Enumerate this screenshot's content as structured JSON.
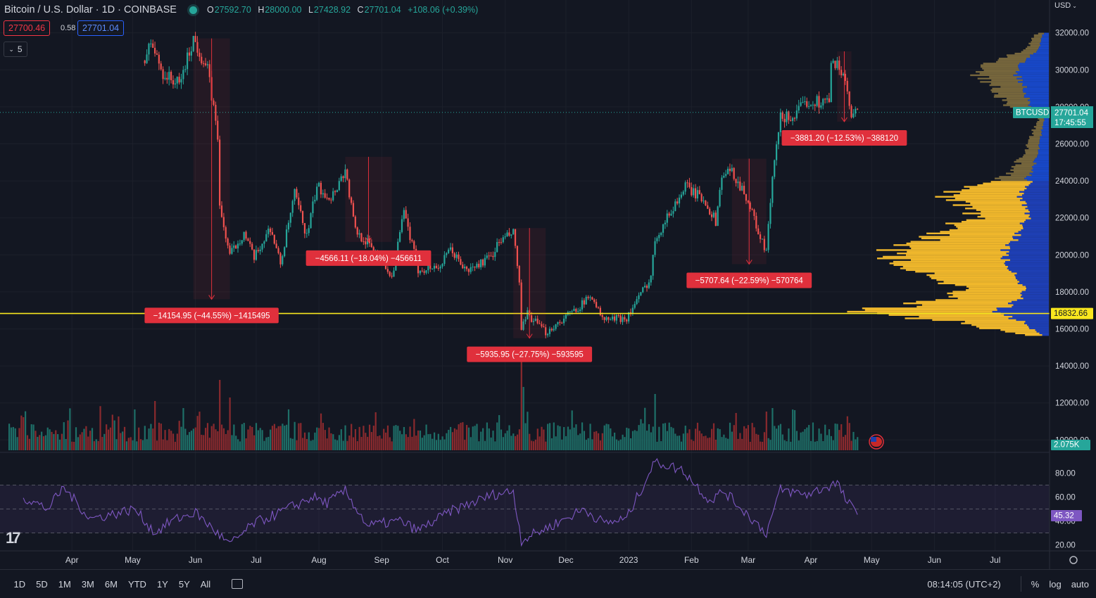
{
  "header": {
    "symbol_title": "Bitcoin / U.S. Dollar · 1D · COINBASE",
    "open_label": "O",
    "open": "27592.70",
    "high_label": "H",
    "high": "28000.00",
    "low_label": "L",
    "low": "27428.92",
    "close_label": "C",
    "close": "27701.04",
    "change": "+108.06 (+0.39%)",
    "bid": "27700.46",
    "spread": "0.58",
    "ask": "27701.04",
    "indicators_count": "5",
    "currency_button": "USD"
  },
  "colors": {
    "up": "#26a69a",
    "down": "#ef5350",
    "background": "#131722",
    "level": "#f9e71e",
    "rsi": "#7e57c2",
    "profile_upper": "#1848c8",
    "profile_lower": "#1e3fb4",
    "profile_value": "#fbc02d",
    "label_red": "#e0303c"
  },
  "price_axis": {
    "labels": [
      "32000.00",
      "30000.00",
      "28000.00",
      "26000.00",
      "24000.00",
      "22000.00",
      "20000.00",
      "18000.00",
      "16000.00",
      "14000.00",
      "12000.00",
      "10000.00"
    ]
  },
  "rsi_axis": {
    "labels": [
      "80.00",
      "60.00",
      "40.00",
      "20.00"
    ],
    "current": "45.32"
  },
  "time_axis": {
    "labels": [
      "Apr",
      "May",
      "Jun",
      "Jul",
      "Aug",
      "Sep",
      "Oct",
      "Nov",
      "Dec",
      "2023",
      "Feb",
      "Mar",
      "Apr",
      "May",
      "Jun",
      "Jul"
    ]
  },
  "markers": {
    "symbol_tag": "BTCUSD",
    "last_price": "27701.04",
    "countdown": "17:45:55",
    "level_price": "16832.66",
    "volume_value": "2.075K"
  },
  "measurements": [
    {
      "text": "−14154.95 (−44.55%) −1415495"
    },
    {
      "text": "−4566.11 (−18.04%) −456611"
    },
    {
      "text": "−5935.95 (−27.75%) −593595"
    },
    {
      "text": "−5707.64 (−22.59%) −570764"
    },
    {
      "text": "−3881.20 (−12.53%) −388120"
    }
  ],
  "bottom_bar": {
    "timeframes": [
      "1D",
      "5D",
      "1M",
      "3M",
      "6M",
      "YTD",
      "1Y",
      "5Y",
      "All"
    ],
    "clock": "08:14:05 (UTC+2)",
    "percent": "%",
    "log": "log",
    "auto": "auto"
  },
  "chart_data": {
    "type": "candlestick",
    "xlabel": "",
    "ylabel": "",
    "ylim": [
      9600,
      33000
    ],
    "horizontal_level": 16832.66,
    "price_path": [
      {
        "x": "2022-05-07",
        "y": 30500
      },
      {
        "x": "2022-05-10",
        "y": 31500
      },
      {
        "x": "2022-05-16",
        "y": 29800
      },
      {
        "x": "2022-05-24",
        "y": 29200
      },
      {
        "x": "2022-05-31",
        "y": 31700
      },
      {
        "x": "2022-06-07",
        "y": 30000
      },
      {
        "x": "2022-06-12",
        "y": 26500
      },
      {
        "x": "2022-06-13",
        "y": 22500
      },
      {
        "x": "2022-06-18",
        "y": 20000
      },
      {
        "x": "2022-06-25",
        "y": 21200
      },
      {
        "x": "2022-06-30",
        "y": 19800
      },
      {
        "x": "2022-07-08",
        "y": 21500
      },
      {
        "x": "2022-07-13",
        "y": 19500
      },
      {
        "x": "2022-07-20",
        "y": 23300
      },
      {
        "x": "2022-07-26",
        "y": 21000
      },
      {
        "x": "2022-07-31",
        "y": 23700
      },
      {
        "x": "2022-08-07",
        "y": 23100
      },
      {
        "x": "2022-08-14",
        "y": 24600
      },
      {
        "x": "2022-08-19",
        "y": 21300
      },
      {
        "x": "2022-08-31",
        "y": 20000
      },
      {
        "x": "2022-09-06",
        "y": 18800
      },
      {
        "x": "2022-09-12",
        "y": 22300
      },
      {
        "x": "2022-09-19",
        "y": 19200
      },
      {
        "x": "2022-09-30",
        "y": 19400
      },
      {
        "x": "2022-10-05",
        "y": 20300
      },
      {
        "x": "2022-10-13",
        "y": 19100
      },
      {
        "x": "2022-10-25",
        "y": 19900
      },
      {
        "x": "2022-10-29",
        "y": 20700
      },
      {
        "x": "2022-11-05",
        "y": 21200
      },
      {
        "x": "2022-11-08",
        "y": 18500
      },
      {
        "x": "2022-11-09",
        "y": 15900
      },
      {
        "x": "2022-11-12",
        "y": 16800
      },
      {
        "x": "2022-11-21",
        "y": 15800
      },
      {
        "x": "2022-12-05",
        "y": 17000
      },
      {
        "x": "2022-12-14",
        "y": 17800
      },
      {
        "x": "2022-12-19",
        "y": 16500
      },
      {
        "x": "2022-12-31",
        "y": 16600
      },
      {
        "x": "2023-01-12",
        "y": 18800
      },
      {
        "x": "2023-01-14",
        "y": 20900
      },
      {
        "x": "2023-01-29",
        "y": 23700
      },
      {
        "x": "2023-02-08",
        "y": 22900
      },
      {
        "x": "2023-02-13",
        "y": 21800
      },
      {
        "x": "2023-02-16",
        "y": 24300
      },
      {
        "x": "2023-02-21",
        "y": 24500
      },
      {
        "x": "2023-02-28",
        "y": 23200
      },
      {
        "x": "2023-03-09",
        "y": 20300
      },
      {
        "x": "2023-03-10",
        "y": 20200
      },
      {
        "x": "2023-03-13",
        "y": 24100
      },
      {
        "x": "2023-03-17",
        "y": 27400
      },
      {
        "x": "2023-03-24",
        "y": 27500
      },
      {
        "x": "2023-03-30",
        "y": 28300
      },
      {
        "x": "2023-04-10",
        "y": 28300
      },
      {
        "x": "2023-04-11",
        "y": 30200
      },
      {
        "x": "2023-04-14",
        "y": 30500
      },
      {
        "x": "2023-04-19",
        "y": 28800
      },
      {
        "x": "2023-04-21",
        "y": 27300
      },
      {
        "x": "2023-04-24",
        "y": 27701.04
      }
    ],
    "last_price": 27701.04,
    "rsi": {
      "overbought": 70,
      "middle": 50,
      "oversold": 30,
      "ylim": [
        15,
        95
      ],
      "current": 45.32,
      "path": [
        {
          "x": "2022-03-08",
          "y": 60
        },
        {
          "x": "2022-03-20",
          "y": 50
        },
        {
          "x": "2022-03-28",
          "y": 68
        },
        {
          "x": "2022-04-10",
          "y": 42
        },
        {
          "x": "2022-04-22",
          "y": 46
        },
        {
          "x": "2022-05-02",
          "y": 50
        },
        {
          "x": "2022-05-12",
          "y": 30
        },
        {
          "x": "2022-05-20",
          "y": 40
        },
        {
          "x": "2022-06-01",
          "y": 47
        },
        {
          "x": "2022-06-13",
          "y": 28
        },
        {
          "x": "2022-06-18",
          "y": 20
        },
        {
          "x": "2022-06-30",
          "y": 38
        },
        {
          "x": "2022-07-10",
          "y": 45
        },
        {
          "x": "2022-07-29",
          "y": 60
        },
        {
          "x": "2022-08-05",
          "y": 55
        },
        {
          "x": "2022-08-14",
          "y": 65
        },
        {
          "x": "2022-08-25",
          "y": 36
        },
        {
          "x": "2022-09-10",
          "y": 40
        },
        {
          "x": "2022-09-19",
          "y": 32
        },
        {
          "x": "2022-10-05",
          "y": 48
        },
        {
          "x": "2022-10-26",
          "y": 62
        },
        {
          "x": "2022-11-05",
          "y": 65
        },
        {
          "x": "2022-11-09",
          "y": 24
        },
        {
          "x": "2022-11-25",
          "y": 37
        },
        {
          "x": "2022-12-10",
          "y": 50
        },
        {
          "x": "2022-12-20",
          "y": 38
        },
        {
          "x": "2022-12-31",
          "y": 42
        },
        {
          "x": "2023-01-14",
          "y": 90
        },
        {
          "x": "2023-01-28",
          "y": 82
        },
        {
          "x": "2023-02-10",
          "y": 57
        },
        {
          "x": "2023-02-17",
          "y": 65
        },
        {
          "x": "2023-03-01",
          "y": 45
        },
        {
          "x": "2023-03-10",
          "y": 30
        },
        {
          "x": "2023-03-17",
          "y": 66
        },
        {
          "x": "2023-03-30",
          "y": 62
        },
        {
          "x": "2023-04-14",
          "y": 72
        },
        {
          "x": "2023-04-18",
          "y": 58
        },
        {
          "x": "2023-04-24",
          "y": 45.32
        }
      ]
    },
    "volume_profile": {
      "levels": [
        {
          "y": 32000,
          "v": 0.06
        },
        {
          "y": 31000,
          "v": 0.14
        },
        {
          "y": 30000,
          "v": 0.4
        },
        {
          "y": 29000,
          "v": 0.27
        },
        {
          "y": 28200,
          "v": 0.25
        },
        {
          "y": 27500,
          "v": 0.05
        },
        {
          "y": 26500,
          "v": 0.09
        },
        {
          "y": 25500,
          "v": 0.12
        },
        {
          "y": 24700,
          "v": 0.19
        },
        {
          "y": 24000,
          "v": 0.27
        },
        {
          "y": 23300,
          "v": 0.55
        },
        {
          "y": 22600,
          "v": 0.43
        },
        {
          "y": 22000,
          "v": 0.38
        },
        {
          "y": 21400,
          "v": 0.57
        },
        {
          "y": 20800,
          "v": 0.65
        },
        {
          "y": 20200,
          "v": 0.84
        },
        {
          "y": 19400,
          "v": 0.78
        },
        {
          "y": 18800,
          "v": 0.56
        },
        {
          "y": 18100,
          "v": 0.47
        },
        {
          "y": 17600,
          "v": 0.55
        },
        {
          "y": 16900,
          "v": 1.0
        },
        {
          "y": 16300,
          "v": 0.42
        },
        {
          "y": 15900,
          "v": 0.28
        },
        {
          "y": 15600,
          "v": 0.1
        }
      ]
    },
    "measurements": [
      {
        "from": "2022-05-31",
        "to": "2022-06-18",
        "start_price": 31700,
        "end_price": 17600
      },
      {
        "from": "2022-08-14",
        "to": "2022-09-06",
        "start_price": 25300,
        "end_price": 20700
      },
      {
        "from": "2022-11-05",
        "to": "2022-11-21",
        "start_price": 21450,
        "end_price": 15500
      },
      {
        "from": "2023-02-21",
        "to": "2023-03-10",
        "start_price": 25200,
        "end_price": 19500
      },
      {
        "from": "2023-04-14",
        "to": "2023-04-21",
        "start_price": 31000,
        "end_price": 27200
      }
    ]
  }
}
